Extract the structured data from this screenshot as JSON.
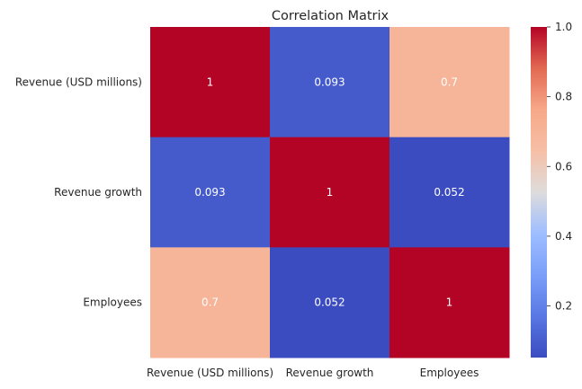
{
  "chart_data": {
    "type": "heatmap",
    "title": "Correlation Matrix",
    "xlabel": "",
    "ylabel": "",
    "rows": [
      "Revenue (USD millions)",
      "Revenue growth",
      "Employees"
    ],
    "columns": [
      "Revenue (USD millions)",
      "Revenue growth",
      "Employees"
    ],
    "values": [
      [
        1,
        0.093,
        0.7
      ],
      [
        0.093,
        1,
        0.052
      ],
      [
        0.7,
        0.052,
        1
      ]
    ],
    "value_labels": [
      [
        "1",
        "0.093",
        "0.7"
      ],
      [
        "0.093",
        "1",
        "0.052"
      ],
      [
        "0.7",
        "0.052",
        "1"
      ]
    ],
    "colormap": "coolwarm",
    "colorbar": {
      "min": 0.052,
      "max": 1.0,
      "ticks": [
        0.2,
        0.4,
        0.6,
        0.8,
        1.0
      ],
      "tick_labels": [
        "0.2",
        "0.4",
        "0.6",
        "0.8",
        "1.0"
      ]
    },
    "grid": false,
    "legend": "colorbar-right"
  }
}
